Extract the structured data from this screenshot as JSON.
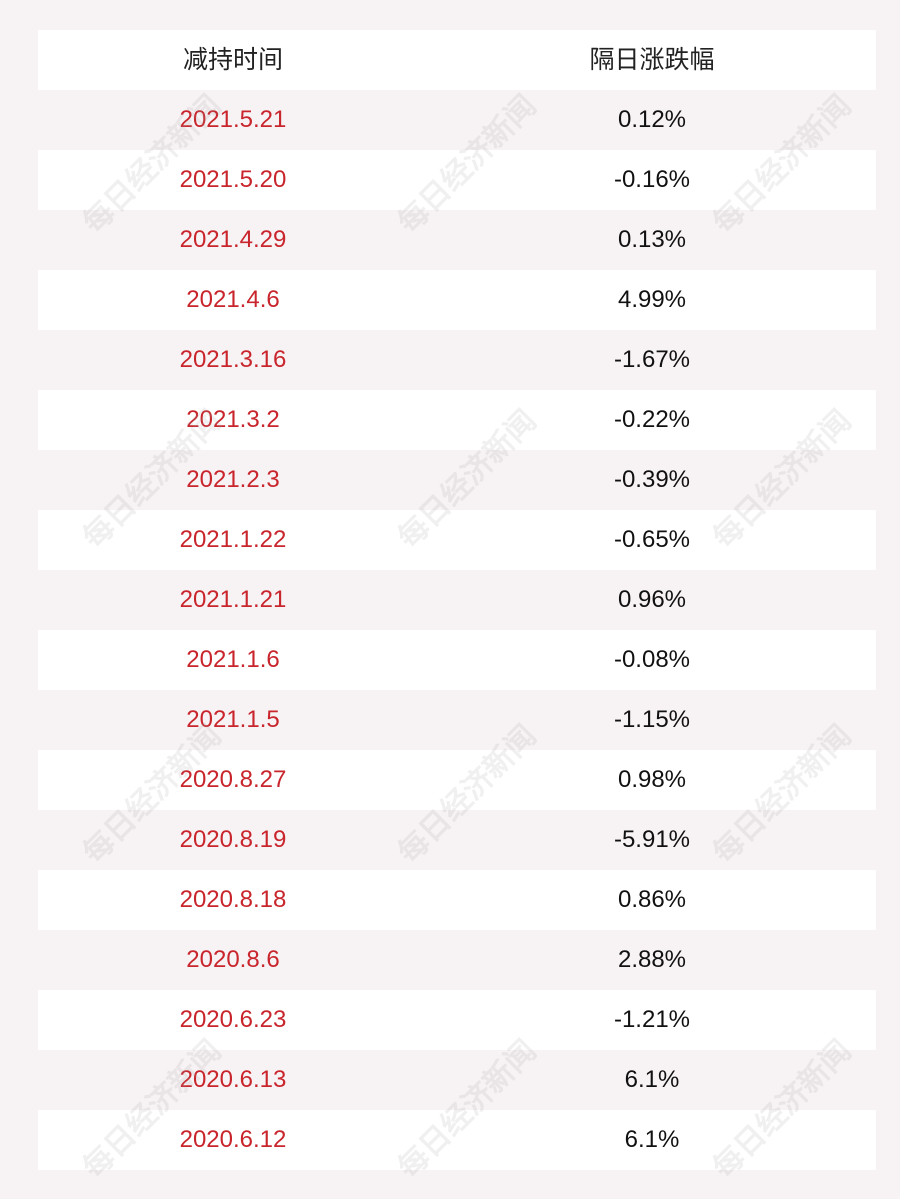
{
  "table": {
    "headers": {
      "time": "减持时间",
      "change": "隔日涨跌幅"
    },
    "rows": [
      {
        "date": "2021.5.21",
        "change": "0.12%"
      },
      {
        "date": "2021.5.20",
        "change": "-0.16%"
      },
      {
        "date": "2021.4.29",
        "change": "0.13%"
      },
      {
        "date": "2021.4.6",
        "change": "4.99%"
      },
      {
        "date": "2021.3.16",
        "change": "-1.67%"
      },
      {
        "date": "2021.3.2",
        "change": "-0.22%"
      },
      {
        "date": "2021.2.3",
        "change": "-0.39%"
      },
      {
        "date": "2021.1.22",
        "change": "-0.65%"
      },
      {
        "date": "2021.1.21",
        "change": "0.96%"
      },
      {
        "date": "2021.1.6",
        "change": "-0.08%"
      },
      {
        "date": "2021.1.5",
        "change": "-1.15%"
      },
      {
        "date": "2020.8.27",
        "change": "0.98%"
      },
      {
        "date": "2020.8.19",
        "change": "-5.91%"
      },
      {
        "date": "2020.8.18",
        "change": "0.86%"
      },
      {
        "date": "2020.8.6",
        "change": "2.88%"
      },
      {
        "date": "2020.6.23",
        "change": "-1.21%"
      },
      {
        "date": "2020.6.13",
        "change": "6.1%"
      },
      {
        "date": "2020.6.12",
        "change": "6.1%"
      }
    ]
  },
  "watermark": {
    "text": "每日经济新闻"
  },
  "colors": {
    "date_text": "#c8252c",
    "value_text": "#111111",
    "header_text": "#222222",
    "row_white": "#ffffff",
    "row_tint": "#f7f2f4"
  }
}
